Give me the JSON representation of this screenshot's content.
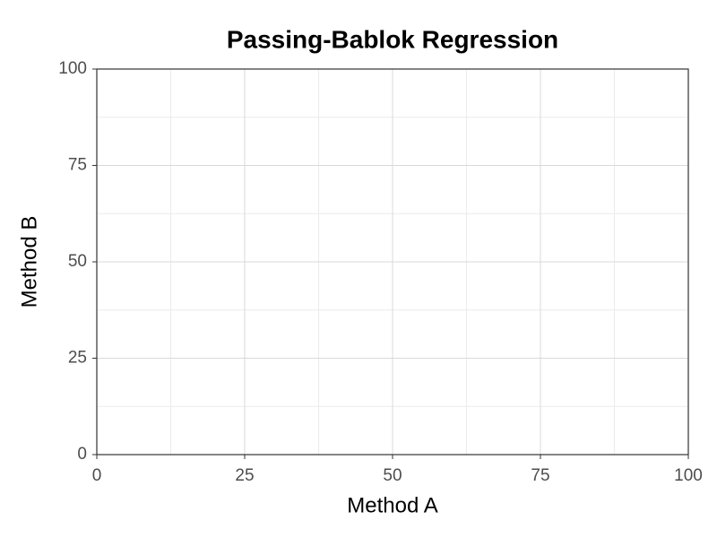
{
  "chart_data": {
    "type": "scatter",
    "title": "Passing-Bablok Regression",
    "x_label": "Method A",
    "y_label": "Method B",
    "xlim": [
      0,
      100
    ],
    "ylim": [
      0,
      100
    ],
    "xticks": [
      0,
      25,
      50,
      75,
      100
    ],
    "yticks": [
      0,
      25,
      50,
      75,
      100
    ],
    "grid": true,
    "minor_grid": true,
    "series": []
  }
}
